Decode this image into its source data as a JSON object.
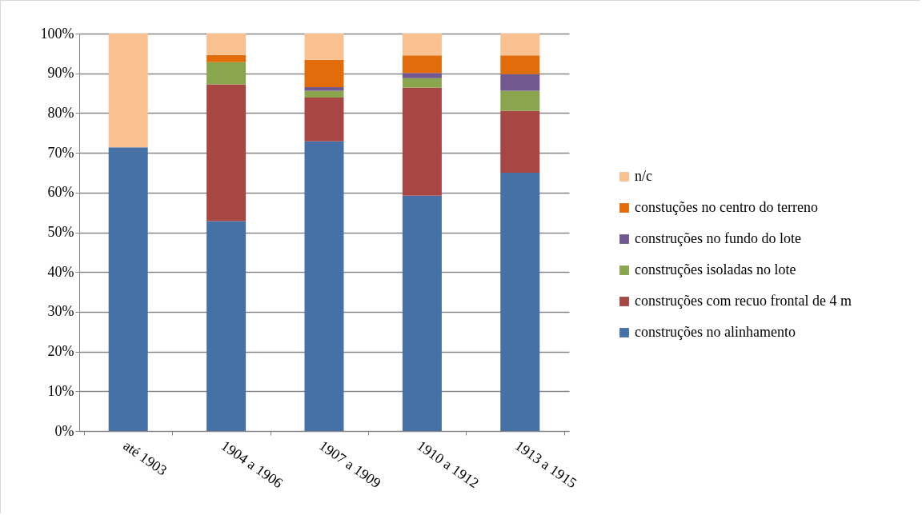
{
  "chart_data": {
    "type": "bar",
    "stacked": true,
    "legend": "right",
    "grid": "y",
    "categories": [
      "até 1903",
      "1904 a 1906",
      "1907 a 1909",
      "1910 a 1912",
      "1913 a 1915"
    ],
    "ylim": [
      0,
      100
    ],
    "yticks": [
      {
        "value": 0,
        "label": "0%"
      },
      {
        "value": 10,
        "label": "10%"
      },
      {
        "value": 20,
        "label": "20%"
      },
      {
        "value": 30,
        "label": "30%"
      },
      {
        "value": 40,
        "label": "40%"
      },
      {
        "value": 50,
        "label": "50%"
      },
      {
        "value": 60,
        "label": "60%"
      },
      {
        "value": 70,
        "label": "70%"
      },
      {
        "value": 80,
        "label": "80%"
      },
      {
        "value": 90,
        "label": "90%"
      },
      {
        "value": 100,
        "label": "100%"
      }
    ],
    "series": [
      {
        "name": "construções no alinhamento",
        "color": "#4571a7",
        "values": [
          71.4,
          52.8,
          72.9,
          59.2,
          65.0
        ]
      },
      {
        "name": "construções com recuo frontal de 4 m",
        "color": "#a84644",
        "values": [
          0,
          34.4,
          11.0,
          27.2,
          15.6
        ]
      },
      {
        "name": "construções isoladas no lote",
        "color": "#89a54e",
        "values": [
          0,
          5.6,
          1.7,
          2.4,
          5.0
        ]
      },
      {
        "name": "construções no fundo do lote",
        "color": "#71588f",
        "values": [
          0,
          0,
          0.9,
          1.3,
          4.2
        ]
      },
      {
        "name": "constuções no centro do terreno",
        "color": "#e36c0a",
        "values": [
          0,
          1.8,
          6.9,
          4.4,
          4.7
        ]
      },
      {
        "name": "n/c",
        "color": "#f9c090",
        "values": [
          28.6,
          5.4,
          6.6,
          5.5,
          5.5
        ]
      }
    ]
  }
}
